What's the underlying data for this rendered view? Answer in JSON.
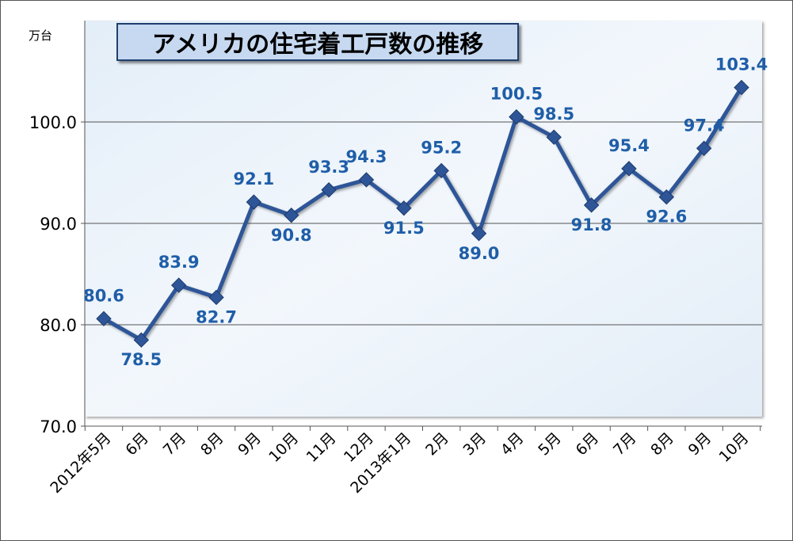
{
  "chart_data": {
    "type": "line",
    "title": "アメリカの住宅着工戸数の推移",
    "ylabel": "万台",
    "xlabel": "",
    "ylim": [
      70,
      110
    ],
    "yticks": [
      "70.0",
      "80.0",
      "90.0",
      "100.0"
    ],
    "categories": [
      "2012年5月",
      "6月",
      "7月",
      "8月",
      "9月",
      "10月",
      "11月",
      "12月",
      "2013年1月",
      "2月",
      "3月",
      "4月",
      "5月",
      "6月",
      "7月",
      "8月",
      "9月",
      "10月"
    ],
    "values": [
      80.6,
      78.5,
      83.9,
      82.7,
      92.1,
      90.8,
      93.3,
      94.3,
      91.5,
      95.2,
      89.0,
      100.5,
      98.5,
      91.8,
      95.4,
      92.6,
      97.4,
      103.4
    ],
    "data_labels": [
      "80.6",
      "78.5",
      "83.9",
      "82.7",
      "92.1",
      "90.8",
      "93.3",
      "94.3",
      "91.5",
      "95.2",
      "89.0",
      "100.5",
      "98.5",
      "91.8",
      "95.4",
      "92.6",
      "97.4",
      "103.4"
    ],
    "label_side": [
      "above",
      "below",
      "above",
      "below",
      "above",
      "below",
      "above",
      "above",
      "below",
      "above",
      "below",
      "above",
      "above",
      "below",
      "above",
      "below",
      "above",
      "above"
    ],
    "grid": true,
    "legend": "none",
    "colors": {
      "line": "#2e5597",
      "marker": "#2e5597",
      "label": "#1f5ea8",
      "grid": "#555555"
    }
  }
}
